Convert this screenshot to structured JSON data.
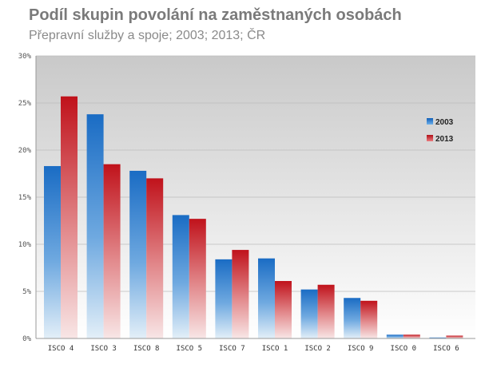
{
  "chart_data": {
    "type": "bar",
    "title": "Podíl skupin povolání na zaměstnaných osobách",
    "subtitle": "Přepravní služby a spoje; 2003; 2013; ČR",
    "categories": [
      "ISCO 4",
      "ISCO 3",
      "ISCO 8",
      "ISCO 5",
      "ISCO 7",
      "ISCO 1",
      "ISCO 2",
      "ISCO 9",
      "ISCO 0",
      "ISCO 6"
    ],
    "series": [
      {
        "name": "2003",
        "values": [
          18.3,
          23.8,
          17.8,
          13.1,
          8.4,
          8.5,
          5.2,
          4.3,
          0.4,
          0.1
        ],
        "color": "#1f6fc6"
      },
      {
        "name": "2013",
        "values": [
          25.7,
          18.5,
          17.0,
          12.7,
          9.4,
          6.1,
          5.7,
          4.0,
          0.4,
          0.3
        ],
        "color": "#c0151c"
      }
    ],
    "ylim": [
      0,
      30
    ],
    "yticks": [
      "0%",
      "5%",
      "10%",
      "15%",
      "20%",
      "25%",
      "30%"
    ],
    "legend_position": "right",
    "grid": true
  }
}
